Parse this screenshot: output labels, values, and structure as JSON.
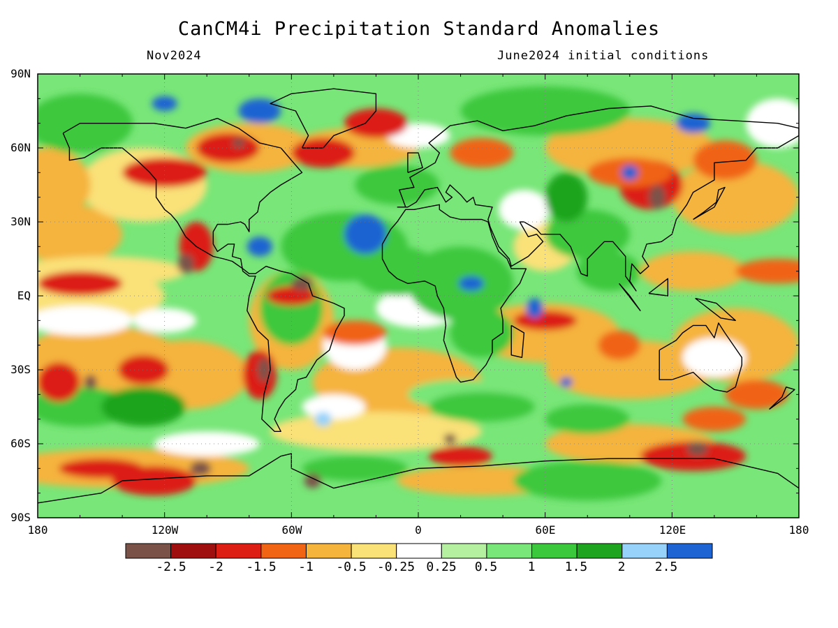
{
  "header": {
    "title": "CanCM4i Precipitation Standard Anomalies",
    "valid_month": "Nov2024",
    "initial_conditions": "June2024 initial conditions"
  },
  "map": {
    "projection": "equirectangular",
    "lon_range": [
      -180,
      180
    ],
    "lat_range": [
      -90,
      90
    ],
    "lat_ticks": [
      "90N",
      "60N",
      "30N",
      "EQ",
      "30S",
      "60S",
      "90S"
    ],
    "lon_ticks": [
      "180",
      "120W",
      "60W",
      "0",
      "60E",
      "120E",
      "180"
    ],
    "features": [
      {
        "name": "Northeast Pacific / western North America",
        "anomaly": "dry"
      },
      {
        "name": "Tropical North Atlantic",
        "anomaly": "wet"
      },
      {
        "name": "Caribbean",
        "anomaly": "wet"
      },
      {
        "name": "Equatorial East Pacific",
        "anomaly": "dry"
      },
      {
        "name": "Southeast Pacific",
        "anomaly": "dry"
      },
      {
        "name": "Central and Southern Africa",
        "anomaly": "wet"
      },
      {
        "name": "Western Indian Ocean",
        "anomaly": "dry"
      },
      {
        "name": "East Asia",
        "anomaly": "dry"
      },
      {
        "name": "Southern Ocean",
        "anomaly": "dry"
      },
      {
        "name": "East Antarctica",
        "anomaly": "wet"
      }
    ]
  },
  "colorbar": {
    "colors": [
      "#7a5248",
      "#a00f0f",
      "#dc1e14",
      "#f06414",
      "#f5b43c",
      "#fae178",
      "#ffffff",
      "#b4f0a0",
      "#78e678",
      "#3cc83c",
      "#1ea41e",
      "#96d2fa",
      "#1e64d2"
    ],
    "labels": [
      "-2.5",
      "-2",
      "-1.5",
      "-1",
      "-0.5",
      "-0.25",
      "0.25",
      "0.5",
      "1",
      "1.5",
      "2",
      "2.5"
    ]
  }
}
